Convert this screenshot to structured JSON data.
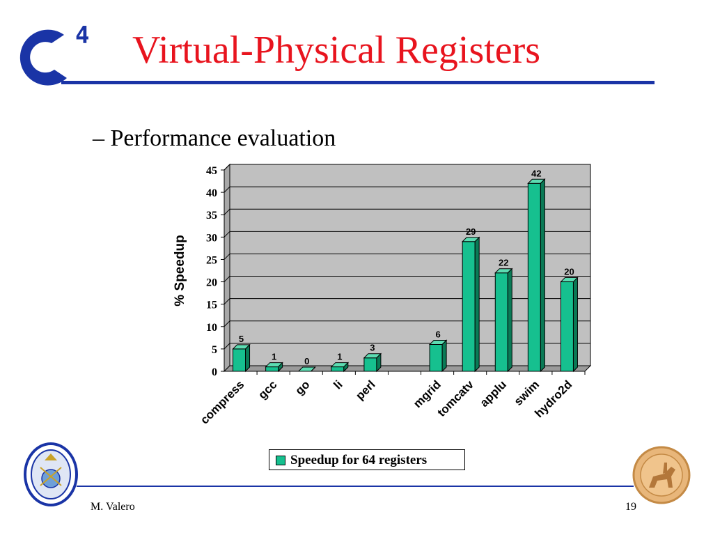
{
  "header": {
    "title": "Virtual-Physical Registers",
    "logo": "c4-logo"
  },
  "subtitle": "– Performance evaluation",
  "footer": {
    "author": "M. Valero",
    "page": "19"
  },
  "chart_data": {
    "type": "bar",
    "title": "",
    "xlabel": "",
    "ylabel": "% Speedup",
    "ylim": [
      0,
      45
    ],
    "yticks": [
      0,
      5,
      10,
      15,
      20,
      25,
      30,
      35,
      40,
      45
    ],
    "grid": true,
    "legend_position": "bottom",
    "categories": [
      "compress",
      "gcc",
      "go",
      "li",
      "perl",
      "",
      "mgrid",
      "tomcatv",
      "applu",
      "swim",
      "hydro2d"
    ],
    "series": [
      {
        "name": "Speedup for 64 registers",
        "values": [
          5,
          1,
          0,
          1,
          3,
          null,
          6,
          29,
          22,
          42,
          20
        ],
        "labels": [
          "5",
          "1",
          "0",
          "1",
          "3",
          "",
          "6",
          "29",
          "22",
          "42",
          "20"
        ],
        "color": "#16c08f"
      }
    ]
  },
  "colors": {
    "title": "#e8141e",
    "rule": "#1a34a6",
    "plot_background": "#c0c0c0",
    "bar_front": "#16c08f",
    "bar_top": "#5cdcb2",
    "bar_side": "#0a7a56"
  }
}
